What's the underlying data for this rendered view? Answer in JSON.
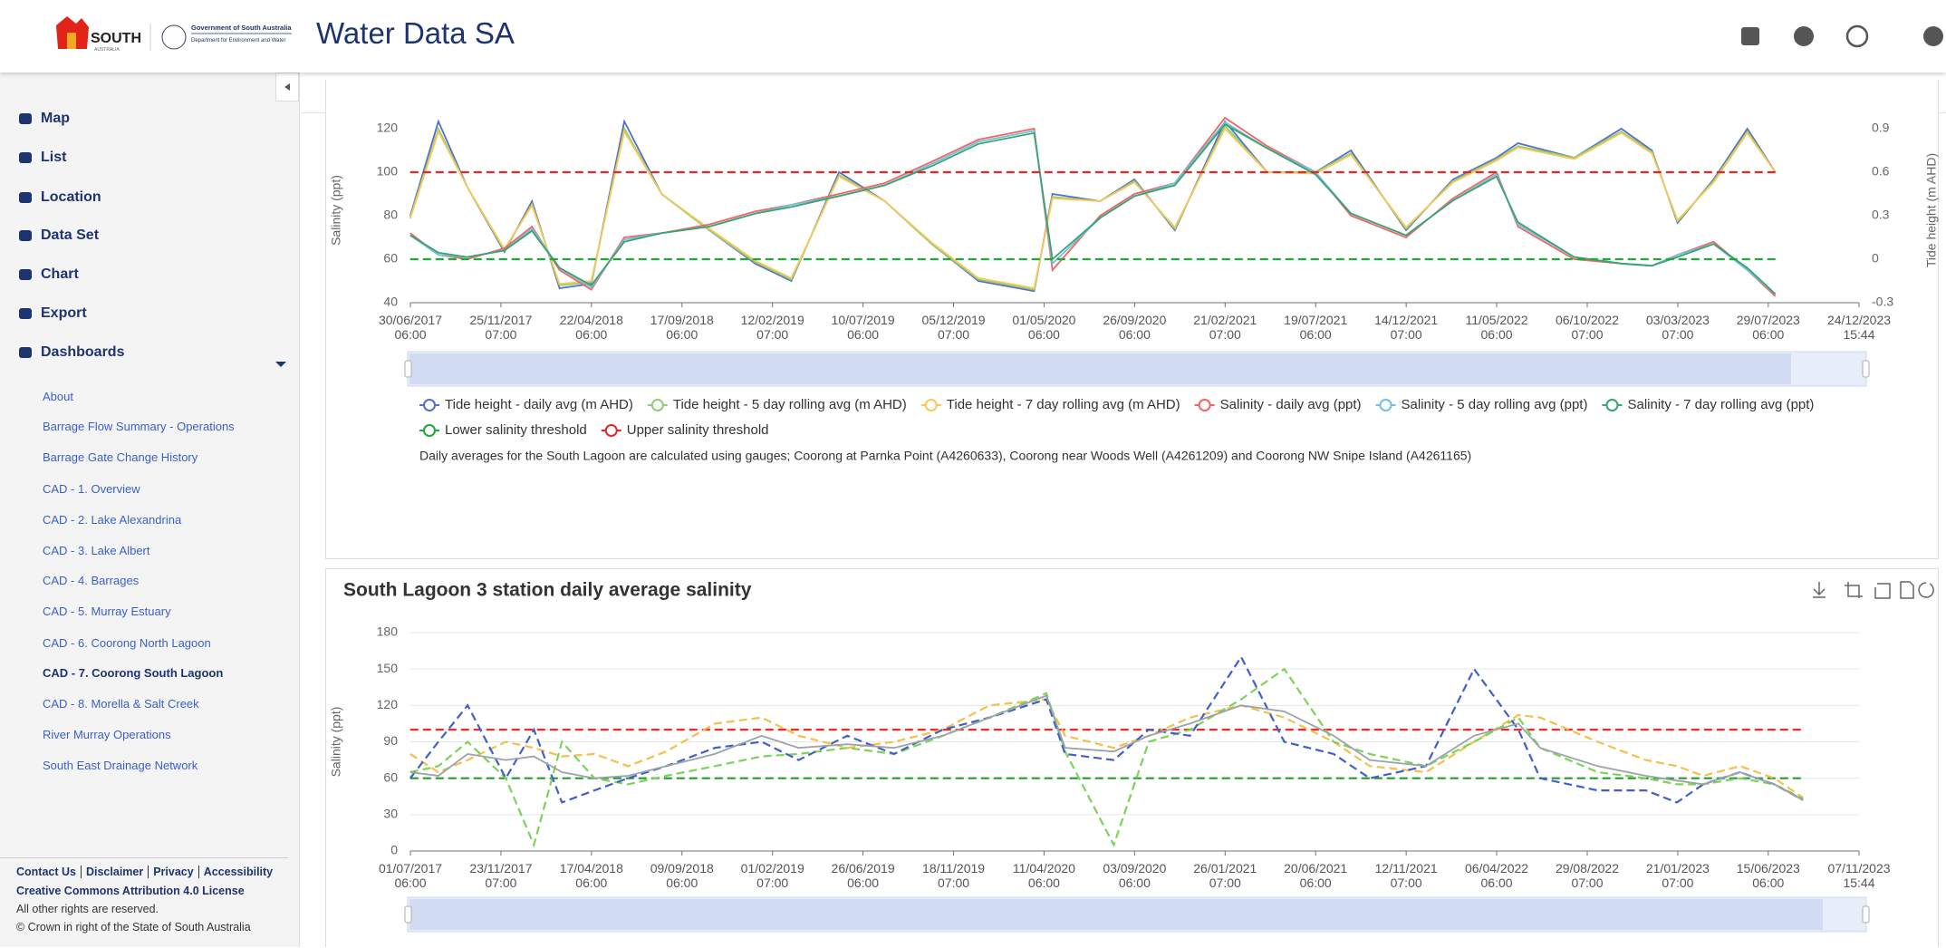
{
  "header": {
    "logo": "SOUTH",
    "logo_sub": "AUSTRALIA",
    "gov": "Government of South Australia",
    "dept": "Department for Environment and Water",
    "title": "Water Data SA"
  },
  "sidebar": {
    "nav": [
      "Map",
      "List",
      "Location",
      "Data Set",
      "Chart",
      "Export",
      "Dashboards"
    ],
    "dashboards": [
      "About",
      "Barrage Flow Summary - Operations",
      "Barrage Gate Change History",
      "CAD - 1. Overview",
      "CAD - 2. Lake Alexandrina",
      "CAD - 3. Lake Albert",
      "CAD - 4. Barrages",
      "CAD - 5. Murray Estuary",
      "CAD - 6. Coorong North Lagoon",
      "CAD - 7. Coorong South Lagoon",
      "CAD - 8. Morella & Salt Creek",
      "River Murray Operations",
      "South East Drainage Network"
    ],
    "footer": {
      "links": [
        "Contact Us",
        "Disclaimer",
        "Privacy",
        "Accessibility"
      ],
      "license": "Creative Commons Attribution 4.0 License",
      "rights": "All other rights are reserved.",
      "crown": "© Crown in right of the State of South Australia"
    }
  },
  "chart_data": [
    {
      "type": "line",
      "y_label": "Salinity (ppt)",
      "y2_label": "Tide height (m AHD)",
      "note": "Daily averages for the South Lagoon are calculated using gauges; Coorong at Parnka Point (A4260633), Coorong near Woods Well (A4261209) and Coorong NW Snipe Island (A4261165)",
      "xlim": [
        "2017-06-30 06:00",
        "2023-12-24 15:44"
      ],
      "xticks": [
        {
          "value": "2017-06-30 06:00",
          "label": "30/06/2017\n06:00"
        },
        {
          "value": "2017-11-25 07:00",
          "label": "25/11/2017\n07:00"
        },
        {
          "value": "2018-04-22 06:00",
          "label": "22/04/2018\n06:00"
        },
        {
          "value": "2018-09-17 06:00",
          "label": "17/09/2018\n06:00"
        },
        {
          "value": "2019-02-12 07:00",
          "label": "12/02/2019\n07:00"
        },
        {
          "value": "2019-07-10 06:00",
          "label": "10/07/2019\n06:00"
        },
        {
          "value": "2019-12-05 07:00",
          "label": "05/12/2019\n07:00"
        },
        {
          "value": "2020-05-01 06:00",
          "label": "01/05/2020\n06:00"
        },
        {
          "value": "2020-09-26 06:00",
          "label": "26/09/2020\n06:00"
        },
        {
          "value": "2021-02-21 07:00",
          "label": "21/02/2021\n07:00"
        },
        {
          "value": "2021-07-19 06:00",
          "label": "19/07/2021\n06:00"
        },
        {
          "value": "2021-12-14 07:00",
          "label": "14/12/2021\n07:00"
        },
        {
          "value": "2022-05-11 06:00",
          "label": "11/05/2022\n06:00"
        },
        {
          "value": "2022-10-06 07:00",
          "label": "06/10/2022\n07:00"
        },
        {
          "value": "2023-03-03 07:00",
          "label": "03/03/2023\n07:00"
        },
        {
          "value": "2023-07-29 06:00",
          "label": "29/07/2023\n06:00"
        },
        {
          "value": "2023-12-24 15:44",
          "label": "24/12/2023\n15:44"
        }
      ],
      "ylim": [
        40,
        125
      ],
      "yticks": [
        40,
        60,
        80,
        100,
        120
      ],
      "y2lim": [
        -0.3,
        0.975
      ],
      "y2ticks": [
        -0.3,
        0,
        0.3,
        0.6,
        0.9
      ],
      "grid": false,
      "legend": "bottom",
      "x": [
        "2017-06-30",
        "2017-08-15",
        "2017-10-01",
        "2017-12-01",
        "2018-01-15",
        "2018-03-01",
        "2018-04-22",
        "2018-06-15",
        "2018-08-15",
        "2018-11-01",
        "2019-01-15",
        "2019-03-15",
        "2019-06-01",
        "2019-08-15",
        "2019-11-01",
        "2020-01-15",
        "2020-04-15",
        "2020-05-15",
        "2020-08-01",
        "2020-09-26",
        "2020-12-01",
        "2021-02-21",
        "2021-05-01",
        "2021-07-19",
        "2021-09-15",
        "2021-12-14",
        "2022-03-01",
        "2022-05-11",
        "2022-06-15",
        "2022-09-15",
        "2022-12-01",
        "2023-01-20",
        "2023-03-03",
        "2023-05-01",
        "2023-06-25",
        "2023-08-10"
      ],
      "series": [
        {
          "name": "Tide height - daily avg (m AHD)",
          "color": "#5470c6",
          "axis": "y2",
          "values": [
            0.3,
            0.95,
            0.5,
            0.05,
            0.4,
            -0.2,
            -0.17,
            0.95,
            0.45,
            0.2,
            -0.03,
            -0.15,
            0.6,
            0.4,
            0.1,
            -0.15,
            -0.22,
            0.45,
            0.4,
            0.55,
            0.2,
            0.95,
            0.6,
            0.6,
            0.75,
            0.2,
            0.55,
            0.7,
            0.8,
            0.7,
            0.9,
            0.75,
            0.25,
            0.55,
            0.9,
            0.6
          ]
        },
        {
          "name": "Tide height - 5 day rolling avg (m AHD)",
          "color": "#91cc75",
          "axis": "y2",
          "values": [
            0.29,
            0.9,
            0.5,
            0.06,
            0.38,
            -0.18,
            -0.16,
            0.9,
            0.45,
            0.2,
            -0.02,
            -0.14,
            0.58,
            0.4,
            0.1,
            -0.14,
            -0.21,
            0.43,
            0.4,
            0.54,
            0.21,
            0.92,
            0.6,
            0.6,
            0.73,
            0.21,
            0.54,
            0.69,
            0.78,
            0.7,
            0.88,
            0.74,
            0.26,
            0.54,
            0.88,
            0.6
          ]
        },
        {
          "name": "Tide height - 7 day rolling avg (m AHD)",
          "color": "#fac858",
          "axis": "y2",
          "values": [
            0.28,
            0.88,
            0.5,
            0.07,
            0.37,
            -0.17,
            -0.15,
            0.88,
            0.45,
            0.21,
            -0.01,
            -0.13,
            0.57,
            0.4,
            0.11,
            -0.13,
            -0.2,
            0.42,
            0.4,
            0.53,
            0.22,
            0.9,
            0.6,
            0.59,
            0.72,
            0.22,
            0.53,
            0.68,
            0.77,
            0.69,
            0.87,
            0.73,
            0.27,
            0.53,
            0.87,
            0.6
          ]
        },
        {
          "name": "Salinity - daily avg (ppt)",
          "color": "#ee6666",
          "values": [
            72,
            62,
            60,
            65,
            75,
            55,
            46,
            70,
            72,
            76,
            82,
            85,
            90,
            95,
            105,
            115,
            120,
            55,
            80,
            90,
            95,
            125,
            112,
            100,
            80,
            70,
            88,
            100,
            75,
            60,
            58,
            57,
            62,
            68,
            55,
            43
          ]
        },
        {
          "name": "Salinity - 5 day rolling avg (ppt)",
          "color": "#73c0de",
          "values": [
            71,
            62,
            61,
            64,
            74,
            56,
            47,
            69,
            72,
            75,
            81,
            85,
            89,
            94,
            104,
            114,
            119,
            58,
            79,
            89,
            95,
            123,
            111,
            100,
            81,
            71,
            87,
            99,
            76,
            61,
            58,
            57,
            62,
            67,
            55,
            44
          ]
        },
        {
          "name": "Salinity - 7 day rolling avg (ppt)",
          "color": "#3ba272",
          "values": [
            71,
            63,
            61,
            64,
            73,
            56,
            48,
            68,
            72,
            75,
            81,
            84,
            89,
            94,
            103,
            113,
            118,
            60,
            79,
            89,
            94,
            122,
            111,
            99,
            81,
            71,
            87,
            98,
            77,
            61,
            58,
            57,
            61,
            67,
            56,
            44
          ]
        },
        {
          "name": "Lower salinity threshold",
          "color": "#1fa83a",
          "dashed": true,
          "values": [
            60,
            60,
            60,
            60,
            60,
            60,
            60,
            60,
            60,
            60,
            60,
            60,
            60,
            60,
            60,
            60,
            60,
            60,
            60,
            60,
            60,
            60,
            60,
            60,
            60,
            60,
            60,
            60,
            60,
            60,
            60,
            60,
            60,
            60,
            60,
            60
          ]
        },
        {
          "name": "Upper salinity threshold",
          "color": "#e3262a",
          "dashed": true,
          "values": [
            100,
            100,
            100,
            100,
            100,
            100,
            100,
            100,
            100,
            100,
            100,
            100,
            100,
            100,
            100,
            100,
            100,
            100,
            100,
            100,
            100,
            100,
            100,
            100,
            100,
            100,
            100,
            100,
            100,
            100,
            100,
            100,
            100,
            100,
            100,
            100
          ]
        }
      ]
    },
    {
      "type": "line",
      "title": "South Lagoon 3 station daily average salinity",
      "y_label": "Salinity (ppt)",
      "xlim": [
        "2017-07-01 06:00",
        "2023-11-07 15:44"
      ],
      "xticks": [
        {
          "value": "2017-07-01 06:00",
          "label": "01/07/2017\n06:00"
        },
        {
          "value": "2017-11-23 07:00",
          "label": "23/11/2017\n07:00"
        },
        {
          "value": "2018-04-17 06:00",
          "label": "17/04/2018\n06:00"
        },
        {
          "value": "2018-09-09 06:00",
          "label": "09/09/2018\n06:00"
        },
        {
          "value": "2019-02-01 07:00",
          "label": "01/02/2019\n07:00"
        },
        {
          "value": "2019-06-26 06:00",
          "label": "26/06/2019\n06:00"
        },
        {
          "value": "2019-11-18 07:00",
          "label": "18/11/2019\n07:00"
        },
        {
          "value": "2020-04-11 06:00",
          "label": "11/04/2020\n06:00"
        },
        {
          "value": "2020-09-03 06:00",
          "label": "03/09/2020\n06:00"
        },
        {
          "value": "2021-01-26 07:00",
          "label": "26/01/2021\n07:00"
        },
        {
          "value": "2021-06-20 06:00",
          "label": "20/06/2021\n06:00"
        },
        {
          "value": "2021-11-12 07:00",
          "label": "12/11/2021\n07:00"
        },
        {
          "value": "2022-04-06 06:00",
          "label": "06/04/2022\n06:00"
        },
        {
          "value": "2022-08-29 07:00",
          "label": "29/08/2022\n07:00"
        },
        {
          "value": "2023-01-21 07:00",
          "label": "21/01/2023\n07:00"
        },
        {
          "value": "2023-06-15 06:00",
          "label": "15/06/2023\n06:00"
        },
        {
          "value": "2023-11-07 15:44",
          "label": "07/11/2023\n15:44"
        }
      ],
      "ylim": [
        0,
        180
      ],
      "yticks": [
        0,
        30,
        60,
        90,
        120,
        150,
        180
      ],
      "grid": true,
      "x": [
        "2017-07-01",
        "2017-08-15",
        "2017-10-01",
        "2017-12-01",
        "2018-01-15",
        "2018-03-01",
        "2018-04-22",
        "2018-06-15",
        "2018-08-15",
        "2018-11-01",
        "2019-01-15",
        "2019-03-15",
        "2019-06-01",
        "2019-08-15",
        "2019-11-01",
        "2020-01-15",
        "2020-04-15",
        "2020-05-15",
        "2020-08-01",
        "2020-09-26",
        "2020-12-01",
        "2021-02-21",
        "2021-05-01",
        "2021-07-19",
        "2021-09-15",
        "2021-12-14",
        "2022-03-01",
        "2022-05-11",
        "2022-06-15",
        "2022-09-15",
        "2022-12-01",
        "2023-01-20",
        "2023-03-03",
        "2023-05-01",
        "2023-06-25",
        "2023-08-10"
      ],
      "series": [
        {
          "color": "#ee2b2b",
          "dashed": true,
          "values": [
            100,
            100,
            100,
            100,
            100,
            100,
            100,
            100,
            100,
            100,
            100,
            100,
            100,
            100,
            100,
            100,
            100,
            100,
            100,
            100,
            100,
            100,
            100,
            100,
            100,
            100,
            100,
            100,
            100,
            100,
            100,
            100,
            100,
            100,
            100,
            100
          ]
        },
        {
          "color": "#229a2e",
          "dashed": true,
          "values": [
            60,
            60,
            60,
            60,
            60,
            60,
            60,
            60,
            60,
            60,
            60,
            60,
            60,
            60,
            60,
            60,
            60,
            60,
            60,
            60,
            60,
            60,
            60,
            60,
            60,
            60,
            60,
            60,
            60,
            60,
            60,
            60,
            60,
            60,
            60,
            60
          ]
        },
        {
          "color": "#f5c04a",
          "dashed": true,
          "values": [
            80,
            65,
            75,
            90,
            85,
            78,
            80,
            70,
            82,
            105,
            110,
            95,
            85,
            90,
            100,
            120,
            125,
            95,
            85,
            95,
            110,
            120,
            110,
            90,
            70,
            65,
            90,
            112,
            110,
            90,
            75,
            70,
            62,
            70,
            60,
            44
          ]
        },
        {
          "color": "#7dd35a",
          "dashed": true,
          "values": [
            65,
            70,
            90,
            60,
            5,
            90,
            60,
            55,
            62,
            70,
            78,
            80,
            85,
            80,
            95,
            110,
            130,
            82,
            5,
            90,
            100,
            125,
            150,
            90,
            80,
            70,
            90,
            110,
            85,
            65,
            60,
            55,
            55,
            60,
            55,
            43
          ]
        },
        {
          "color": "#4060c8",
          "dashed": true,
          "values": [
            60,
            90,
            120,
            60,
            100,
            40,
            50,
            60,
            70,
            85,
            90,
            75,
            95,
            80,
            100,
            110,
            125,
            80,
            75,
            100,
            95,
            160,
            90,
            80,
            60,
            70,
            150,
            100,
            60,
            50,
            50,
            40,
            55,
            65,
            55,
            42
          ]
        },
        {
          "color": "#9aa3a8",
          "values": [
            65,
            62,
            80,
            75,
            78,
            65,
            60,
            62,
            70,
            80,
            95,
            85,
            88,
            85,
            95,
            110,
            128,
            85,
            82,
            95,
            105,
            120,
            115,
            95,
            75,
            70,
            95,
            105,
            85,
            70,
            62,
            58,
            55,
            65,
            55,
            42
          ]
        }
      ]
    }
  ]
}
